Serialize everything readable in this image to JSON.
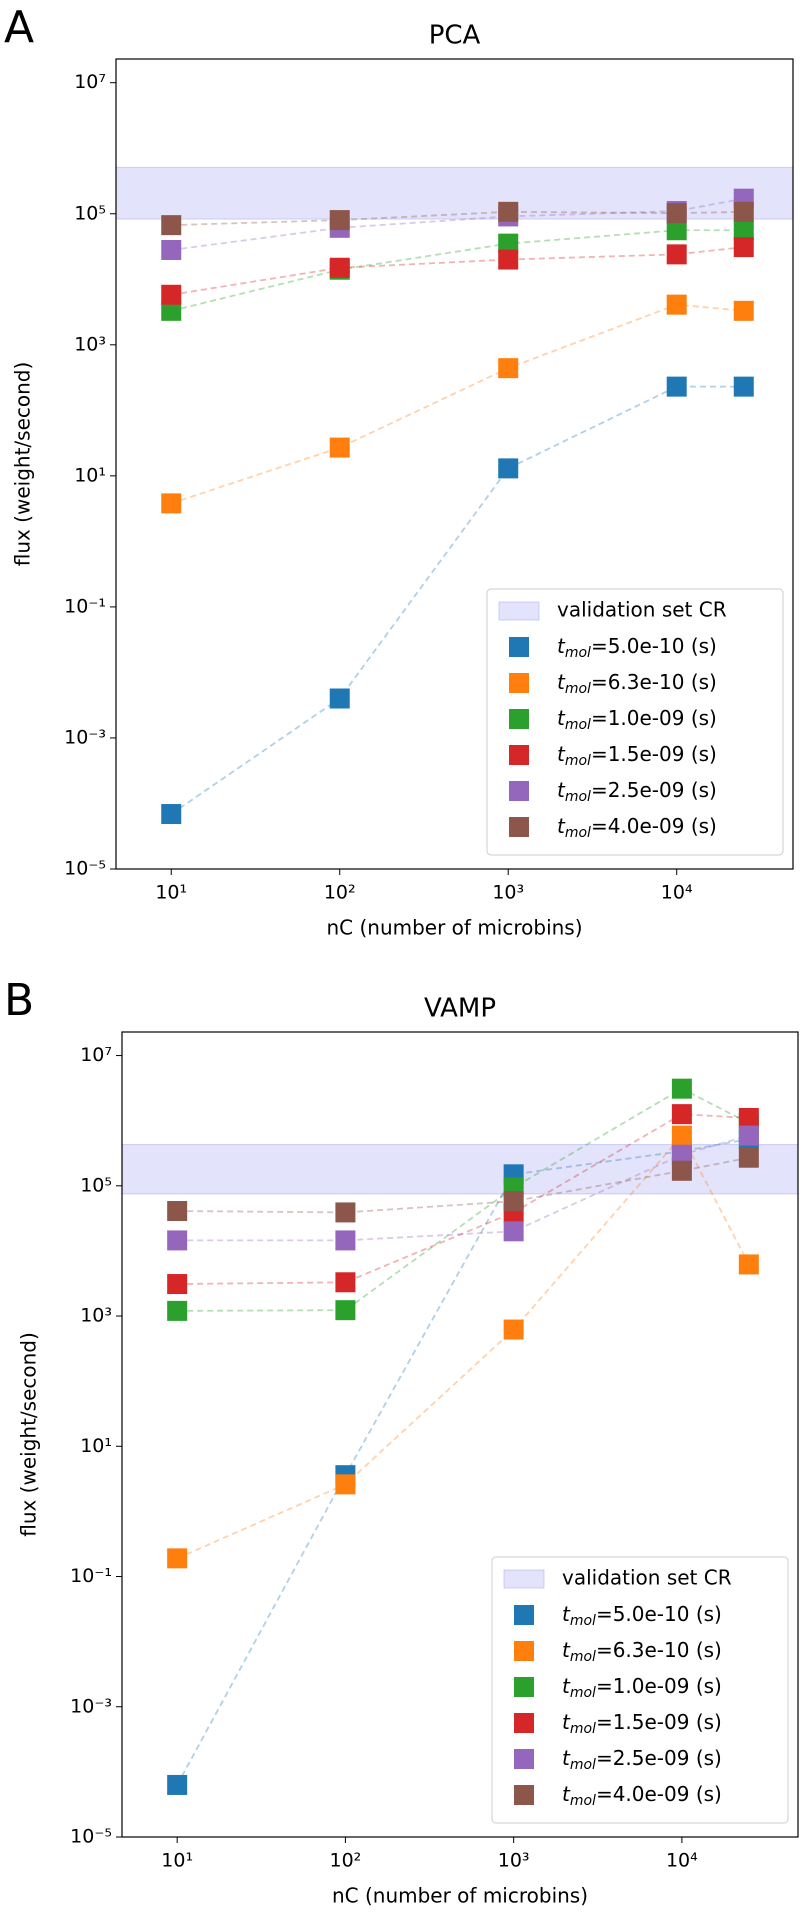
{
  "chart_data": [
    {
      "type": "scatter",
      "panel": "A",
      "title": "PCA",
      "x_label": "nC (number of microbins)",
      "y_label": "flux (weight/second)",
      "x_log": true,
      "y_log": true,
      "legend": "lower right",
      "xlim": [
        4.7,
        49000
      ],
      "ylim": [
        1e-05,
        23000000.0
      ],
      "xticks": [
        {
          "value": 10,
          "label": "10¹"
        },
        {
          "value": 100,
          "label": "10²"
        },
        {
          "value": 1000,
          "label": "10³"
        },
        {
          "value": 10000,
          "label": "10⁴"
        }
      ],
      "yticks": [
        {
          "value": 1e-05,
          "label": "10⁻⁵"
        },
        {
          "value": 0.001,
          "label": "10⁻³"
        },
        {
          "value": 0.1,
          "label": "10⁻¹"
        },
        {
          "value": 10,
          "label": "10¹"
        },
        {
          "value": 1000,
          "label": "10³"
        },
        {
          "value": 100000,
          "label": "10⁵"
        },
        {
          "value": 10000000,
          "label": "10⁷"
        }
      ],
      "band": {
        "name": "validation set CR",
        "color": "#c8c8f8",
        "range": [
          83000,
          510000
        ]
      },
      "x": [
        10,
        100,
        1000,
        10000,
        25000
      ],
      "series": [
        {
          "name": "tmol=5.0e-10 (s)",
          "color": "#1f77b4",
          "values": [
            6.9e-05,
            0.004,
            13,
            230,
            230
          ]
        },
        {
          "name": "tmol=6.3e-10 (s)",
          "color": "#ff7f0e",
          "values": [
            3.8,
            27,
            440,
            4100,
            3300
          ]
        },
        {
          "name": "tmol=1.0e-09 (s)",
          "color": "#2ca02c",
          "values": [
            3300,
            14000,
            35000,
            56000,
            56000
          ]
        },
        {
          "name": "tmol=1.5e-09 (s)",
          "color": "#d62728",
          "values": [
            5800,
            15000,
            20000,
            24000,
            31000
          ]
        },
        {
          "name": "tmol=2.5e-09 (s)",
          "color": "#9467bd",
          "values": [
            28000,
            61000,
            91000,
            110000,
            170000
          ]
        },
        {
          "name": "tmol=4.0e-09 (s)",
          "color": "#8c564b",
          "values": [
            67000,
            80000,
            107000,
            102000,
            107000
          ]
        }
      ]
    },
    {
      "type": "scatter",
      "panel": "B",
      "title": "VAMP",
      "x_label": "nC (number of microbins)",
      "y_label": "flux (weight/second)",
      "x_log": true,
      "y_log": true,
      "legend": "lower right",
      "xlim": [
        4.7,
        49000
      ],
      "ylim": [
        1e-05,
        23000000.0
      ],
      "xticks": [
        {
          "value": 10,
          "label": "10¹"
        },
        {
          "value": 100,
          "label": "10²"
        },
        {
          "value": 1000,
          "label": "10³"
        },
        {
          "value": 10000,
          "label": "10⁴"
        }
      ],
      "yticks": [
        {
          "value": 1e-05,
          "label": "10⁻⁵"
        },
        {
          "value": 0.001,
          "label": "10⁻³"
        },
        {
          "value": 0.1,
          "label": "10⁻¹"
        },
        {
          "value": 10,
          "label": "10¹"
        },
        {
          "value": 1000,
          "label": "10³"
        },
        {
          "value": 100000,
          "label": "10⁵"
        },
        {
          "value": 10000000,
          "label": "10⁷"
        }
      ],
      "band": {
        "name": "validation set CR",
        "color": "#c8c8f8",
        "range": [
          75000,
          430000
        ]
      },
      "x": [
        10,
        100,
        1000,
        10000,
        25000
      ],
      "series": [
        {
          "name": "tmol=5.0e-10 (s)",
          "color": "#1f77b4",
          "values": [
            6.3e-05,
            3.6,
            150000,
            340000,
            520000
          ]
        },
        {
          "name": "tmol=6.3e-10 (s)",
          "color": "#ff7f0e",
          "values": [
            0.19,
            2.6,
            620,
            590000,
            6200
          ]
        },
        {
          "name": "tmol=1.0e-09 (s)",
          "color": "#2ca02c",
          "values": [
            1200,
            1230,
            94000,
            3100000,
            920000
          ]
        },
        {
          "name": "tmol=1.5e-09 (s)",
          "color": "#d62728",
          "values": [
            3100,
            3300,
            39000,
            1260000,
            1100000
          ]
        },
        {
          "name": "tmol=2.5e-09 (s)",
          "color": "#9467bd",
          "values": [
            14500,
            14500,
            20000,
            300000,
            590000
          ]
        },
        {
          "name": "tmol=4.0e-09 (s)",
          "color": "#8c564b",
          "values": [
            41000,
            39000,
            58000,
            170000,
            270000
          ]
        }
      ]
    }
  ]
}
